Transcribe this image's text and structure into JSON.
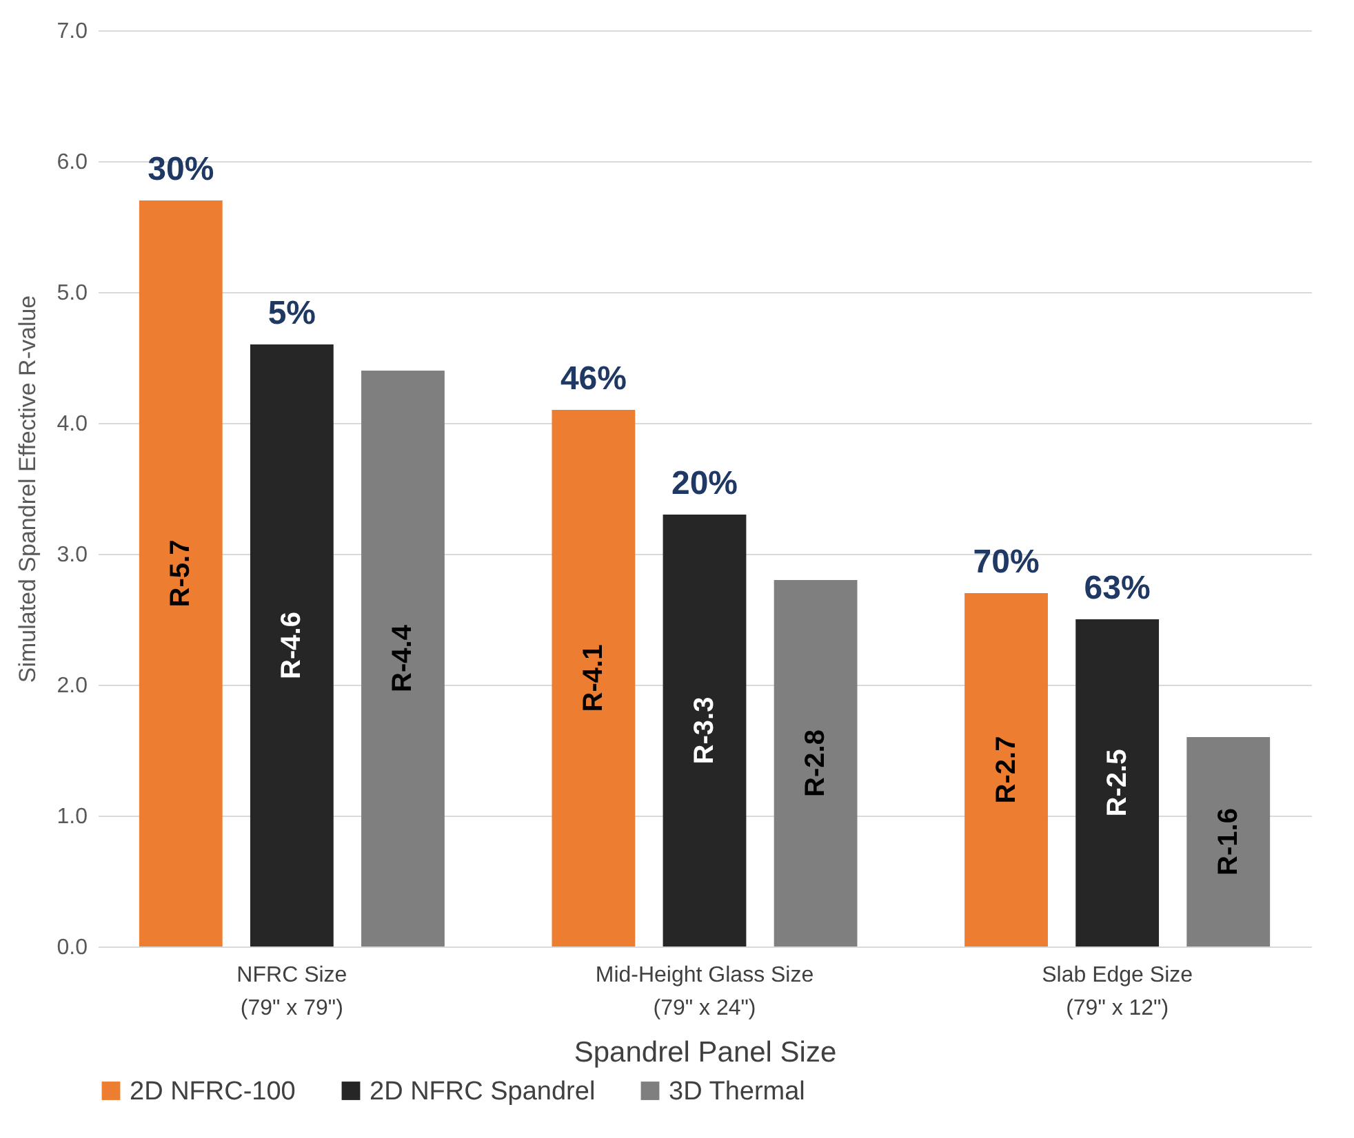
{
  "chart_data": {
    "type": "bar",
    "xlabel": "Spandrel Panel Size",
    "ylabel": "Simulated Spandrel Effective R-value",
    "categories": [
      "NFRC Size\n(79\" x 79\")",
      "Mid-Height Glass Size\n(79\" x 24\")",
      "Slab Edge Size\n(79\" x 12\")"
    ],
    "series": [
      {
        "name": "2D NFRC-100",
        "color": "#ed7d31",
        "values": [
          5.7,
          4.1,
          2.7
        ],
        "value_labels": [
          "R-5.7",
          "R-4.1",
          "R-2.7"
        ]
      },
      {
        "name": "2D NFRC Spandrel",
        "color": "#262626",
        "values": [
          4.6,
          3.3,
          2.5
        ],
        "value_labels": [
          "R-4.6",
          "R-3.3",
          "R-2.5"
        ]
      },
      {
        "name": "3D Thermal",
        "color": "#7f7f7f",
        "values": [
          4.4,
          2.8,
          1.6
        ],
        "value_labels": [
          "R-4.4",
          "R-2.8",
          "R-1.6"
        ]
      }
    ],
    "ylim": [
      0,
      7
    ],
    "yticks": [
      {
        "value": 0,
        "label": "0.0"
      },
      {
        "value": 1,
        "label": "1.0"
      },
      {
        "value": 2,
        "label": "2.0"
      },
      {
        "value": 3,
        "label": "3.0"
      },
      {
        "value": 4,
        "label": "4.0"
      },
      {
        "value": 5,
        "label": "5.0"
      },
      {
        "value": 6,
        "label": "6.0"
      },
      {
        "value": 7,
        "label": "7.0"
      }
    ],
    "annotations": [
      "30%",
      "5%",
      "46%",
      "20%",
      "70%",
      "63%"
    ],
    "grid": "y",
    "legend": "bottom"
  }
}
